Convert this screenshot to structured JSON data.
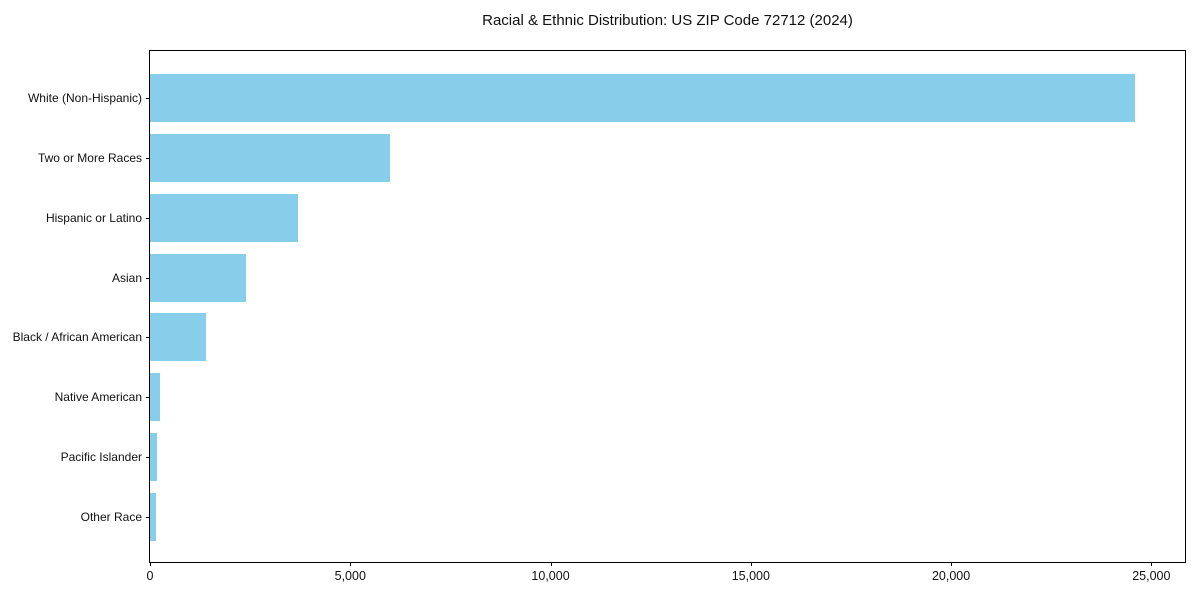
{
  "title": "Racial & Ethnic Distribution: US ZIP Code 72712 (2024)",
  "chart_data": {
    "type": "bar",
    "orientation": "horizontal",
    "title": "Racial & Ethnic Distribution: US ZIP Code 72712 (2024)",
    "xlabel": "",
    "ylabel": "",
    "categories": [
      "White (Non-Hispanic)",
      "Two or More Races",
      "Hispanic or Latino",
      "Asian",
      "Black / African American",
      "Native American",
      "Pacific Islander",
      "Other Race"
    ],
    "values": [
      24600,
      6000,
      3700,
      2400,
      1400,
      260,
      170,
      150
    ],
    "x_ticks": [
      0,
      5000,
      10000,
      15000,
      20000,
      25000
    ],
    "x_tick_labels": [
      "0",
      "5,000",
      "10,000",
      "15,000",
      "20,000",
      "25,000"
    ],
    "xlim": [
      0,
      25840
    ],
    "grid": false,
    "legend": null,
    "bar_color": "#87CEEB",
    "background_color": "#ffffff",
    "spine_color": "#000000",
    "text_color": "#111111"
  }
}
